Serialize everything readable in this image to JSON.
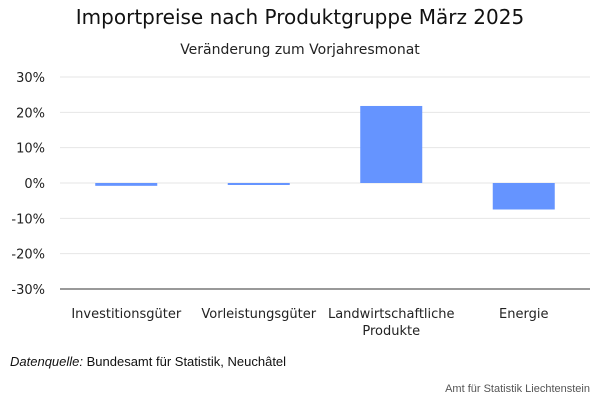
{
  "chart_data": {
    "type": "bar",
    "title": "Importpreise nach Produktgruppe März 2025",
    "subtitle": "Veränderung zum Vorjahresmonat",
    "xlabel": "",
    "ylabel": "",
    "categories": [
      [
        "Investitionsgüter"
      ],
      [
        "Vorleistungsgüter"
      ],
      [
        "Landwirtschaftliche",
        "Produkte"
      ],
      [
        "Energie"
      ]
    ],
    "values": [
      -0.8,
      -0.3,
      21.8,
      -7.5
    ],
    "unit": "%",
    "ylim": [
      -30,
      30
    ],
    "yticks": [
      "-30%",
      "-20%",
      "-10%",
      "0%",
      "10%",
      "20%",
      "30%"
    ],
    "ytick_values": [
      -30,
      -20,
      -10,
      0,
      10,
      20,
      30
    ],
    "grid": true,
    "legend": "none",
    "bar_color": "#6594ff"
  },
  "source": {
    "prefix": "Datenquelle:",
    "text": " Bundesamt für Statistik, Neuchâtel"
  },
  "footer": {
    "credit": "Amt für Statistik Liechtenstein"
  }
}
